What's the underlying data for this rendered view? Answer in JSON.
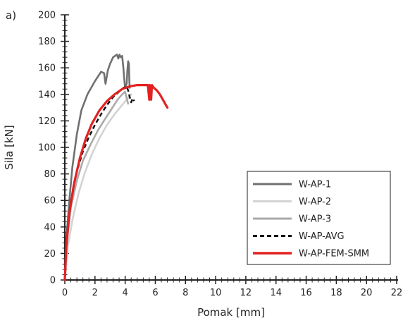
{
  "chart_data": {
    "type": "line",
    "panel_label": "a)",
    "xlabel": "Pomak [mm]",
    "ylabel": "Sila [kN]",
    "xlim": [
      0,
      22
    ],
    "ylim": [
      0,
      200
    ],
    "x_ticks": [
      0,
      2,
      4,
      6,
      8,
      10,
      12,
      14,
      16,
      18,
      20,
      22
    ],
    "y_ticks": [
      0,
      20,
      40,
      60,
      80,
      100,
      120,
      140,
      160,
      180,
      200
    ],
    "grid": false,
    "legend_position": "bottom-right",
    "series": [
      {
        "name": "W-AP-1",
        "color": "#707070",
        "style": "solid",
        "points": [
          [
            0,
            0
          ],
          [
            0.1,
            30
          ],
          [
            0.3,
            60
          ],
          [
            0.5,
            85
          ],
          [
            0.8,
            110
          ],
          [
            1.1,
            128
          ],
          [
            1.5,
            140
          ],
          [
            2.0,
            150
          ],
          [
            2.4,
            157
          ],
          [
            2.6,
            156
          ],
          [
            2.7,
            148
          ],
          [
            2.85,
            158
          ],
          [
            3.0,
            163
          ],
          [
            3.2,
            168
          ],
          [
            3.45,
            170
          ],
          [
            3.55,
            167
          ],
          [
            3.62,
            170
          ],
          [
            3.72,
            168
          ],
          [
            3.8,
            169
          ],
          [
            3.88,
            160
          ],
          [
            3.95,
            150
          ],
          [
            4.0,
            145
          ],
          [
            4.1,
            148
          ],
          [
            4.15,
            158
          ],
          [
            4.2,
            165
          ],
          [
            4.25,
            163
          ],
          [
            4.28,
            150
          ],
          [
            4.3,
            145
          ]
        ]
      },
      {
        "name": "W-AP-2",
        "color": "#d3d3d3",
        "style": "solid",
        "points": [
          [
            0,
            0
          ],
          [
            0.2,
            25
          ],
          [
            0.5,
            45
          ],
          [
            0.9,
            65
          ],
          [
            1.3,
            80
          ],
          [
            1.8,
            95
          ],
          [
            2.3,
            107
          ],
          [
            2.8,
            117
          ],
          [
            3.3,
            125
          ],
          [
            3.8,
            132
          ],
          [
            4.1,
            136
          ],
          [
            4.4,
            140
          ]
        ]
      },
      {
        "name": "W-AP-3",
        "color": "#aaaaaa",
        "style": "solid",
        "points": [
          [
            0,
            0
          ],
          [
            0.15,
            30
          ],
          [
            0.4,
            55
          ],
          [
            0.8,
            75
          ],
          [
            1.2,
            90
          ],
          [
            1.7,
            102
          ],
          [
            2.2,
            113
          ],
          [
            2.7,
            122
          ],
          [
            3.1,
            129
          ],
          [
            3.5,
            136
          ],
          [
            3.8,
            140
          ],
          [
            4.0,
            142
          ],
          [
            4.1,
            137
          ],
          [
            4.2,
            133
          ]
        ]
      },
      {
        "name": "W-AP-AVG",
        "color": "#111111",
        "style": "dashed",
        "points": [
          [
            0,
            0
          ],
          [
            0.15,
            35
          ],
          [
            0.4,
            60
          ],
          [
            0.8,
            82
          ],
          [
            1.2,
            97
          ],
          [
            1.6,
            108
          ],
          [
            2.0,
            117
          ],
          [
            2.4,
            125
          ],
          [
            2.8,
            132
          ],
          [
            3.2,
            138
          ],
          [
            3.6,
            142
          ],
          [
            3.9,
            145
          ],
          [
            4.1,
            146
          ],
          [
            4.2,
            143
          ],
          [
            4.3,
            138
          ],
          [
            4.4,
            134
          ],
          [
            4.5,
            137
          ],
          [
            4.6,
            135
          ]
        ]
      },
      {
        "name": "W-AP-FEM-SMM",
        "color": "#e32121",
        "style": "solid",
        "points": [
          [
            0,
            0
          ],
          [
            0.1,
            25
          ],
          [
            0.3,
            50
          ],
          [
            0.6,
            72
          ],
          [
            1.0,
            92
          ],
          [
            1.4,
            107
          ],
          [
            1.8,
            118
          ],
          [
            2.3,
            128
          ],
          [
            2.8,
            135
          ],
          [
            3.3,
            140
          ],
          [
            3.8,
            144
          ],
          [
            4.3,
            146
          ],
          [
            4.8,
            147
          ],
          [
            5.2,
            147
          ],
          [
            5.5,
            147
          ],
          [
            5.55,
            142
          ],
          [
            5.6,
            136
          ],
          [
            5.63,
            147
          ],
          [
            5.68,
            138
          ],
          [
            5.72,
            136
          ],
          [
            5.78,
            147
          ],
          [
            5.9,
            145
          ],
          [
            6.1,
            143
          ],
          [
            6.3,
            140
          ],
          [
            6.5,
            136
          ],
          [
            6.7,
            132
          ],
          [
            6.8,
            130
          ]
        ]
      }
    ]
  }
}
